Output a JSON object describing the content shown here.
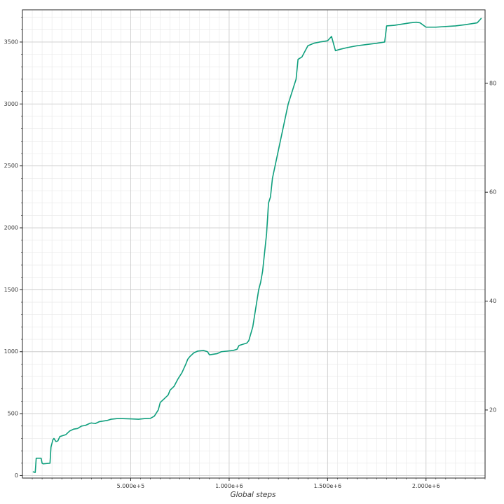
{
  "chart_data": {
    "type": "line",
    "title": "",
    "xlabel": "Global steps",
    "ylabel": "",
    "grid": true,
    "legend": "none",
    "line_color": "#0f9f7d",
    "grid_major_color": "#cccccc",
    "grid_minor_color": "#e7e7e7",
    "axis_color": "#262626",
    "tick_label_color": "#3a3a3a",
    "xlim": [
      -50000,
      2300000
    ],
    "ylim_left": [
      -20,
      3760
    ],
    "ylim_right": [
      7.5,
      93.5
    ],
    "x_ticks": [
      {
        "value": 500000,
        "label": "5.000e+5"
      },
      {
        "value": 1000000,
        "label": "1.000e+6"
      },
      {
        "value": 1500000,
        "label": "1.500e+6"
      },
      {
        "value": 2000000,
        "label": "2.000e+6"
      }
    ],
    "y_ticks_left": [
      0,
      500,
      1000,
      1500,
      2000,
      2500,
      3000,
      3500
    ],
    "y_ticks_right": [
      20,
      40,
      60,
      80
    ],
    "x_minor_step": 50000,
    "y_minor_step_left": 100,
    "series": [
      {
        "points": [
          [
            5000,
            30
          ],
          [
            15000,
            25
          ],
          [
            20000,
            140
          ],
          [
            45000,
            140
          ],
          [
            50000,
            100
          ],
          [
            55000,
            95
          ],
          [
            90000,
            100
          ],
          [
            95000,
            230
          ],
          [
            105000,
            290
          ],
          [
            110000,
            300
          ],
          [
            120000,
            275
          ],
          [
            130000,
            280
          ],
          [
            140000,
            315
          ],
          [
            150000,
            320
          ],
          [
            170000,
            330
          ],
          [
            190000,
            360
          ],
          [
            210000,
            375
          ],
          [
            230000,
            380
          ],
          [
            250000,
            400
          ],
          [
            270000,
            405
          ],
          [
            290000,
            420
          ],
          [
            300000,
            425
          ],
          [
            320000,
            420
          ],
          [
            340000,
            435
          ],
          [
            360000,
            440
          ],
          [
            380000,
            445
          ],
          [
            400000,
            455
          ],
          [
            430000,
            460
          ],
          [
            460000,
            460
          ],
          [
            500000,
            458
          ],
          [
            540000,
            455
          ],
          [
            570000,
            460
          ],
          [
            600000,
            462
          ],
          [
            620000,
            480
          ],
          [
            640000,
            530
          ],
          [
            650000,
            590
          ],
          [
            670000,
            620
          ],
          [
            690000,
            650
          ],
          [
            700000,
            690
          ],
          [
            720000,
            720
          ],
          [
            740000,
            780
          ],
          [
            760000,
            830
          ],
          [
            780000,
            900
          ],
          [
            790000,
            940
          ],
          [
            800000,
            960
          ],
          [
            820000,
            990
          ],
          [
            840000,
            1005
          ],
          [
            870000,
            1010
          ],
          [
            890000,
            1000
          ],
          [
            900000,
            975
          ],
          [
            920000,
            980
          ],
          [
            940000,
            985
          ],
          [
            960000,
            1000
          ],
          [
            990000,
            1005
          ],
          [
            1020000,
            1010
          ],
          [
            1040000,
            1020
          ],
          [
            1050000,
            1050
          ],
          [
            1070000,
            1060
          ],
          [
            1090000,
            1070
          ],
          [
            1100000,
            1090
          ],
          [
            1120000,
            1200
          ],
          [
            1130000,
            1300
          ],
          [
            1150000,
            1500
          ],
          [
            1160000,
            1560
          ],
          [
            1170000,
            1650
          ],
          [
            1180000,
            1800
          ],
          [
            1190000,
            1950
          ],
          [
            1200000,
            2200
          ],
          [
            1210000,
            2250
          ],
          [
            1220000,
            2400
          ],
          [
            1240000,
            2550
          ],
          [
            1260000,
            2700
          ],
          [
            1280000,
            2850
          ],
          [
            1300000,
            3000
          ],
          [
            1320000,
            3100
          ],
          [
            1330000,
            3150
          ],
          [
            1340000,
            3200
          ],
          [
            1350000,
            3360
          ],
          [
            1370000,
            3380
          ],
          [
            1400000,
            3470
          ],
          [
            1430000,
            3490
          ],
          [
            1460000,
            3500
          ],
          [
            1500000,
            3510
          ],
          [
            1520000,
            3545
          ],
          [
            1540000,
            3430
          ],
          [
            1560000,
            3440
          ],
          [
            1600000,
            3455
          ],
          [
            1650000,
            3470
          ],
          [
            1700000,
            3480
          ],
          [
            1750000,
            3490
          ],
          [
            1790000,
            3500
          ],
          [
            1800000,
            3630
          ],
          [
            1840000,
            3635
          ],
          [
            1880000,
            3645
          ],
          [
            1920000,
            3655
          ],
          [
            1950000,
            3660
          ],
          [
            1970000,
            3655
          ],
          [
            2000000,
            3620
          ],
          [
            2050000,
            3620
          ],
          [
            2100000,
            3625
          ],
          [
            2150000,
            3630
          ],
          [
            2200000,
            3640
          ],
          [
            2240000,
            3650
          ],
          [
            2260000,
            3655
          ],
          [
            2280000,
            3690
          ]
        ]
      }
    ]
  }
}
